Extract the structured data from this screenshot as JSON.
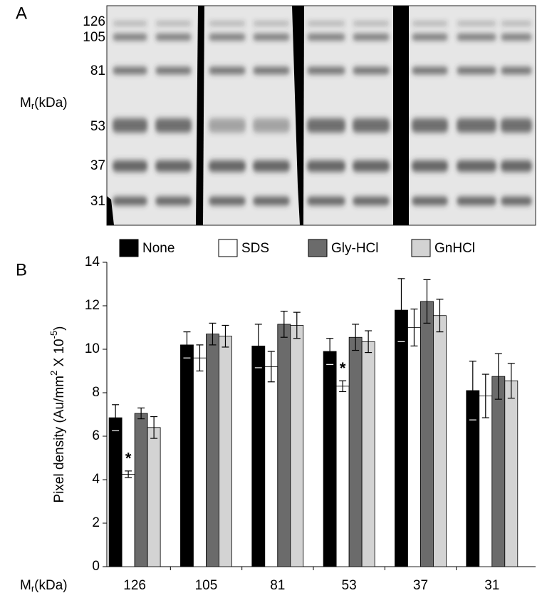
{
  "gel": {
    "panel_label": "A",
    "markers": [
      "126",
      "105",
      "81",
      "53",
      "37",
      "31"
    ],
    "axis_label": {
      "main": "M",
      "sub": "r",
      "rest": "(kDa)"
    }
  },
  "chart_data": {
    "type": "bar",
    "panel_label": "B",
    "x_label": {
      "main": "M",
      "sub": "r",
      "rest": "(kDa)"
    },
    "y_label_parts": [
      {
        "text": "Pixel density (Au/mm"
      },
      {
        "text": "2",
        "sup": true
      },
      {
        "text": " X 10"
      },
      {
        "text": "-5",
        "sup": true
      },
      {
        "text": ")"
      }
    ],
    "categories": [
      "126",
      "105",
      "81",
      "53",
      "37",
      "31"
    ],
    "series": [
      {
        "name": "None",
        "color": "#000000",
        "values": [
          6.85,
          10.2,
          10.15,
          9.9,
          11.8,
          8.1
        ],
        "errors": [
          0.6,
          0.6,
          1.0,
          0.6,
          1.45,
          1.35
        ]
      },
      {
        "name": "SDS",
        "color": "#ffffff",
        "values": [
          4.25,
          9.6,
          9.2,
          8.3,
          11.0,
          7.85
        ],
        "errors": [
          0.15,
          0.6,
          0.7,
          0.25,
          0.85,
          1.0
        ]
      },
      {
        "name": "Gly-HCl",
        "color": "#6b6b6b",
        "values": [
          7.05,
          10.7,
          11.15,
          10.55,
          12.2,
          8.75
        ],
        "errors": [
          0.25,
          0.5,
          0.6,
          0.6,
          1.0,
          1.05
        ]
      },
      {
        "name": "GnHCl",
        "color": "#d3d3d3",
        "values": [
          6.4,
          10.6,
          11.1,
          10.35,
          11.55,
          8.55
        ],
        "errors": [
          0.5,
          0.5,
          0.6,
          0.5,
          0.75,
          0.8
        ]
      }
    ],
    "annotations": [
      {
        "text": "*",
        "category": "126",
        "series": "SDS"
      },
      {
        "text": "*",
        "category": "53",
        "series": "SDS"
      }
    ],
    "ylim": [
      0,
      14
    ],
    "yticks": [
      0,
      2,
      4,
      6,
      8,
      10,
      12,
      14
    ]
  }
}
